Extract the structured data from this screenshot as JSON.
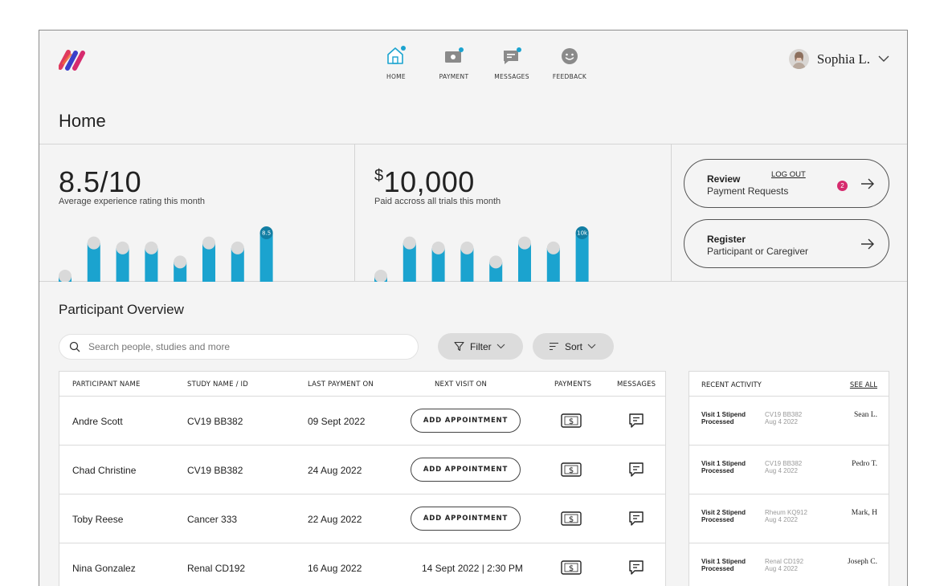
{
  "header": {
    "nav": [
      {
        "label": "HOME",
        "icon": "home-icon"
      },
      {
        "label": "PAYMENT",
        "icon": "payment-icon"
      },
      {
        "label": "MESSAGES",
        "icon": "messages-icon"
      },
      {
        "label": "FEEDBACK",
        "icon": "feedback-icon"
      }
    ],
    "user_name": "Sophia L."
  },
  "page_title": "Home",
  "stats": [
    {
      "value": "8.5/10",
      "caption": "Average experience rating this month",
      "bars": [
        0.2,
        0.82,
        0.73,
        0.73,
        0.48,
        0.82,
        0.73
      ],
      "latest_label": "8.5",
      "latest_value": 1.0
    },
    {
      "currency": "$",
      "value": "10,000",
      "caption": "Paid accross all trials this month",
      "bars": [
        0.2,
        0.82,
        0.73,
        0.73,
        0.48,
        0.82,
        0.73
      ],
      "latest_label": "10k",
      "latest_value": 1.0
    }
  ],
  "actions": {
    "review": {
      "title": "Review",
      "subtitle": "Payment Requests",
      "badge": "2"
    },
    "logout": "LOG OUT",
    "register": {
      "title": "Register",
      "subtitle": "Participant or Caregiver"
    }
  },
  "colors": {
    "accent": "#1ba3cf",
    "bar_cap": "#d9d9d9",
    "badge": "#d62b6e"
  },
  "overview": {
    "title": "Participant Overview",
    "search_placeholder": "Search people, studies and more",
    "filter_label": "Filter",
    "sort_label": "Sort"
  },
  "table": {
    "headers": [
      "PARTICIPANT NAME",
      "STUDY NAME / ID",
      "LAST PAYMENT ON",
      "NEXT VISIT ON",
      "PAYMENTS",
      "MESSAGES"
    ],
    "add_appointment_label": "ADD APPOINTMENT",
    "rows": [
      {
        "name": "Andre Scott",
        "study": "CV19 BB382",
        "last_payment": "09 Sept 2022",
        "next_visit": ""
      },
      {
        "name": "Chad Christine",
        "study": "CV19 BB382",
        "last_payment": "24 Aug 2022",
        "next_visit": ""
      },
      {
        "name": "Toby Reese",
        "study": "Cancer 333",
        "last_payment": "22 Aug 2022",
        "next_visit": ""
      },
      {
        "name": "Nina Gonzalez",
        "study": "Renal CD192",
        "last_payment": "16 Aug 2022",
        "next_visit": "14 Sept 2022 | 2:30 PM"
      }
    ]
  },
  "activity": {
    "title": "RECENT ACTIVITY",
    "see_all": "SEE ALL",
    "items": [
      {
        "event_line1": "Visit 1 Stipend",
        "event_line2": "Processed",
        "study": "CV19 BB382",
        "date": "Aug 4 2022",
        "person": "Sean L."
      },
      {
        "event_line1": "Visit 1 Stipend",
        "event_line2": "Processed",
        "study": "CV19 BB382",
        "date": "Aug 4 2022",
        "person": "Pedro T."
      },
      {
        "event_line1": "Visit 2 Stipend",
        "event_line2": "Processed",
        "study": "Rheum KQ912",
        "date": "Aug 4 2022",
        "person": "Mark, H"
      },
      {
        "event_line1": "Visit 1 Stipend",
        "event_line2": "Processed",
        "study": "Renal CD192",
        "date": "Aug 4 2022",
        "person": "Joseph C."
      }
    ]
  }
}
